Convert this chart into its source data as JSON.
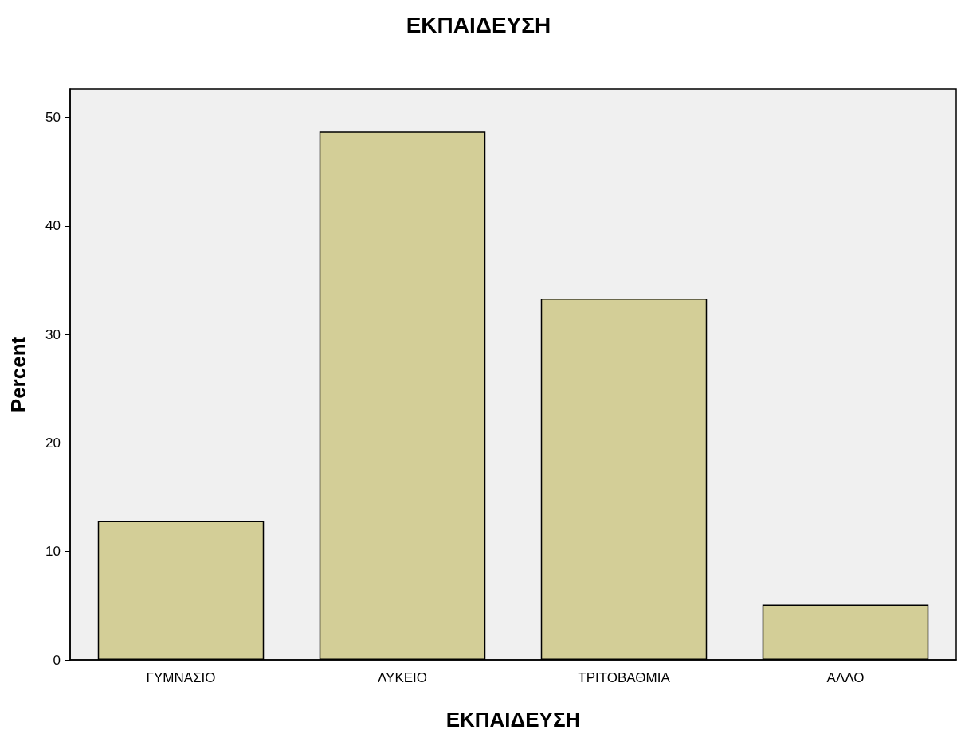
{
  "chart_data": {
    "type": "bar",
    "title": "ΕΚΠΑΙΔΕΥΣΗ",
    "xlabel": "ΕΚΠΑΙΔΕΥΣΗ",
    "ylabel": "Percent",
    "categories": [
      "ΓΥΜΝΑΣΙΟ",
      "ΛΥΚΕΙΟ",
      "ΤΡΙΤΟΒΑΘΜΙΑ",
      "ΑΛΛΟ"
    ],
    "values": [
      12.8,
      48.7,
      33.3,
      5.1
    ],
    "color": "#d3ce97",
    "ylim": [
      0,
      52.6
    ],
    "yticks": [
      0,
      10,
      20,
      30,
      40,
      50
    ],
    "grid": false
  }
}
